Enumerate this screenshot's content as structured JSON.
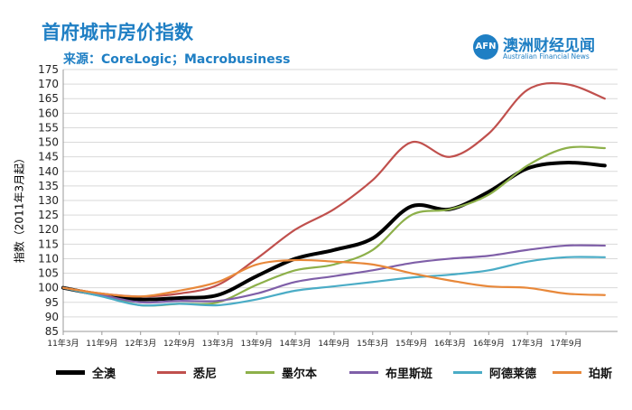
{
  "title": "首府城市房价指数",
  "source": "来源：CoreLogic；Macrobusiness",
  "logo": {
    "mark": "AFN",
    "name_cn": "澳洲财经见闻",
    "name_en": "Australian Financial News"
  },
  "colors": {
    "全澳": "#000000",
    "悉尼": "#c0504d",
    "墨尔本": "#8db04a",
    "布里斯班": "#7f5fa8",
    "阿德莱德": "#4aacc6",
    "珀斯": "#e8883a"
  },
  "chart_data": {
    "type": "line",
    "title": "首府城市房价指数",
    "ylabel": "指数（2011年3月起）",
    "xlabel": "",
    "ylim": [
      85,
      175
    ],
    "yticks": [
      85,
      90,
      95,
      100,
      105,
      110,
      115,
      120,
      125,
      130,
      135,
      140,
      145,
      150,
      155,
      160,
      165,
      170,
      175
    ],
    "x": [
      "11年3月",
      "11年9月",
      "12年3月",
      "12年9月",
      "13年3月",
      "13年9月",
      "14年3月",
      "14年9月",
      "15年3月",
      "15年9月",
      "16年3月",
      "16年9月",
      "17年3月",
      "17年9月",
      "18年1月"
    ],
    "xticks": [
      "11年3月",
      "11年9月",
      "12年3月",
      "12年9月",
      "13年3月",
      "13年9月",
      "14年3月",
      "14年9月",
      "15年3月",
      "15年9月",
      "16年3月",
      "16年9月",
      "17年3月",
      "17年9月"
    ],
    "grid": true,
    "legend_position": "bottom",
    "series": [
      {
        "name": "全澳",
        "color": "#000000",
        "width": 4,
        "values": [
          100,
          97.5,
          96,
          96.5,
          97.5,
          104,
          110,
          113,
          117,
          128,
          127,
          133,
          141,
          143,
          142
        ]
      },
      {
        "name": "悉尼",
        "color": "#c0504d",
        "width": 2.2,
        "values": [
          100,
          98,
          97,
          98,
          101,
          110,
          120,
          127,
          137,
          150,
          145,
          153,
          168,
          170,
          165
        ]
      },
      {
        "name": "墨尔本",
        "color": "#8db04a",
        "width": 2.2,
        "values": [
          100,
          97.5,
          94,
          94.5,
          95,
          101,
          106,
          108,
          113,
          125,
          127,
          132,
          142,
          148,
          148
        ]
      },
      {
        "name": "布里斯班",
        "color": "#7f5fa8",
        "width": 2.2,
        "values": [
          100,
          97.5,
          95,
          95.5,
          95.5,
          98,
          102,
          104,
          106,
          108.5,
          110,
          111,
          113,
          114.5,
          114.5
        ]
      },
      {
        "name": "阿德莱德",
        "color": "#4aacc6",
        "width": 2.2,
        "values": [
          100,
          97,
          94,
          94.5,
          94,
          96,
          99,
          100.5,
          102,
          103.5,
          104.5,
          106,
          109,
          110.5,
          110.5
        ]
      },
      {
        "name": "珀斯",
        "color": "#e8883a",
        "width": 2.2,
        "values": [
          100,
          98,
          97,
          99,
          102,
          108,
          109.5,
          109,
          108,
          105,
          102.5,
          100.5,
          100,
          98,
          97.5
        ]
      }
    ]
  },
  "legend": [
    {
      "label": "全澳",
      "color": "#000000"
    },
    {
      "label": "悉尼",
      "color": "#c0504d"
    },
    {
      "label": "墨尔本",
      "color": "#8db04a"
    },
    {
      "label": "布里斯班",
      "color": "#7f5fa8"
    },
    {
      "label": "阿德莱德",
      "color": "#4aacc6"
    },
    {
      "label": "珀斯",
      "color": "#e8883a"
    }
  ]
}
